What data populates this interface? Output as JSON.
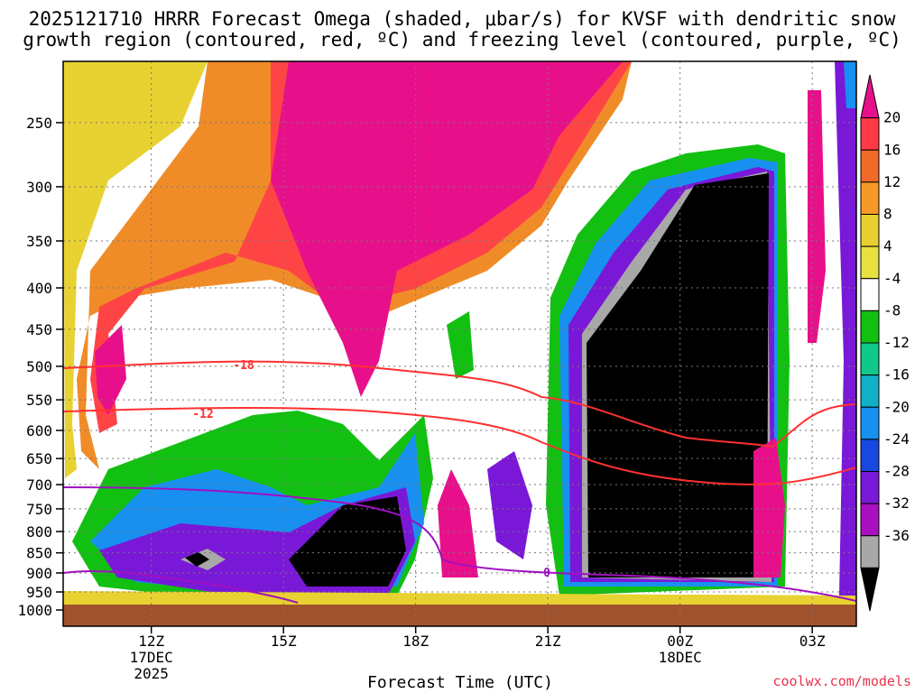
{
  "title_line1": "2025121710 HRRR Forecast Omega (shaded, μbar/s) for KVSF with dendritic snow",
  "title_line2": "growth region (contoured, red, ºC) and freezing level (contoured, purple, ºC)",
  "credit": "coolwx.com/models",
  "chart_data": {
    "type": "time-height cross section",
    "xlabel": "Forecast Time (UTC)",
    "ylabel": "",
    "y_axis": {
      "ticks": [
        250,
        300,
        350,
        400,
        450,
        500,
        550,
        600,
        650,
        700,
        750,
        800,
        850,
        900,
        950,
        1000
      ],
      "ylim": [
        210,
        1000
      ],
      "reversed": true
    },
    "x_axis": {
      "ticks": [
        {
          "hour": 12,
          "label": "12Z",
          "sub1": "17DEC",
          "sub2": "2025"
        },
        {
          "hour": 15,
          "label": "15Z",
          "sub1": "",
          "sub2": ""
        },
        {
          "hour": 18,
          "label": "18Z",
          "sub1": "",
          "sub2": ""
        },
        {
          "hour": 21,
          "label": "21Z",
          "sub1": "",
          "sub2": ""
        },
        {
          "hour": 24,
          "label": "00Z",
          "sub1": "18DEC",
          "sub2": ""
        },
        {
          "hour": 27,
          "label": "03Z",
          "sub1": "",
          "sub2": ""
        }
      ],
      "xlim": [
        10,
        28
      ]
    },
    "grid": true,
    "colorbar": {
      "labels": [
        "20",
        "16",
        "12",
        "8",
        "4",
        "-4",
        "-8",
        "-12",
        "-16",
        "-20",
        "-24",
        "-28",
        "-32",
        "-36"
      ],
      "colors": [
        "#e8108a",
        "#ff3a46",
        "#f06a28",
        "#f59a28",
        "#e8cf30",
        "#e8e040",
        "#ffffff",
        "#12c012",
        "#10c88a",
        "#10b0c8",
        "#1890f0",
        "#1848e0",
        "#7a18d8",
        "#a810c0",
        "#a8a8a8",
        "#000000"
      ]
    },
    "contour_labels": [
      {
        "text": "-18",
        "color": "#ff3030"
      },
      {
        "text": "-12",
        "color": "#ff3030"
      },
      {
        "text": "0",
        "color": "#a010c0"
      }
    ]
  }
}
